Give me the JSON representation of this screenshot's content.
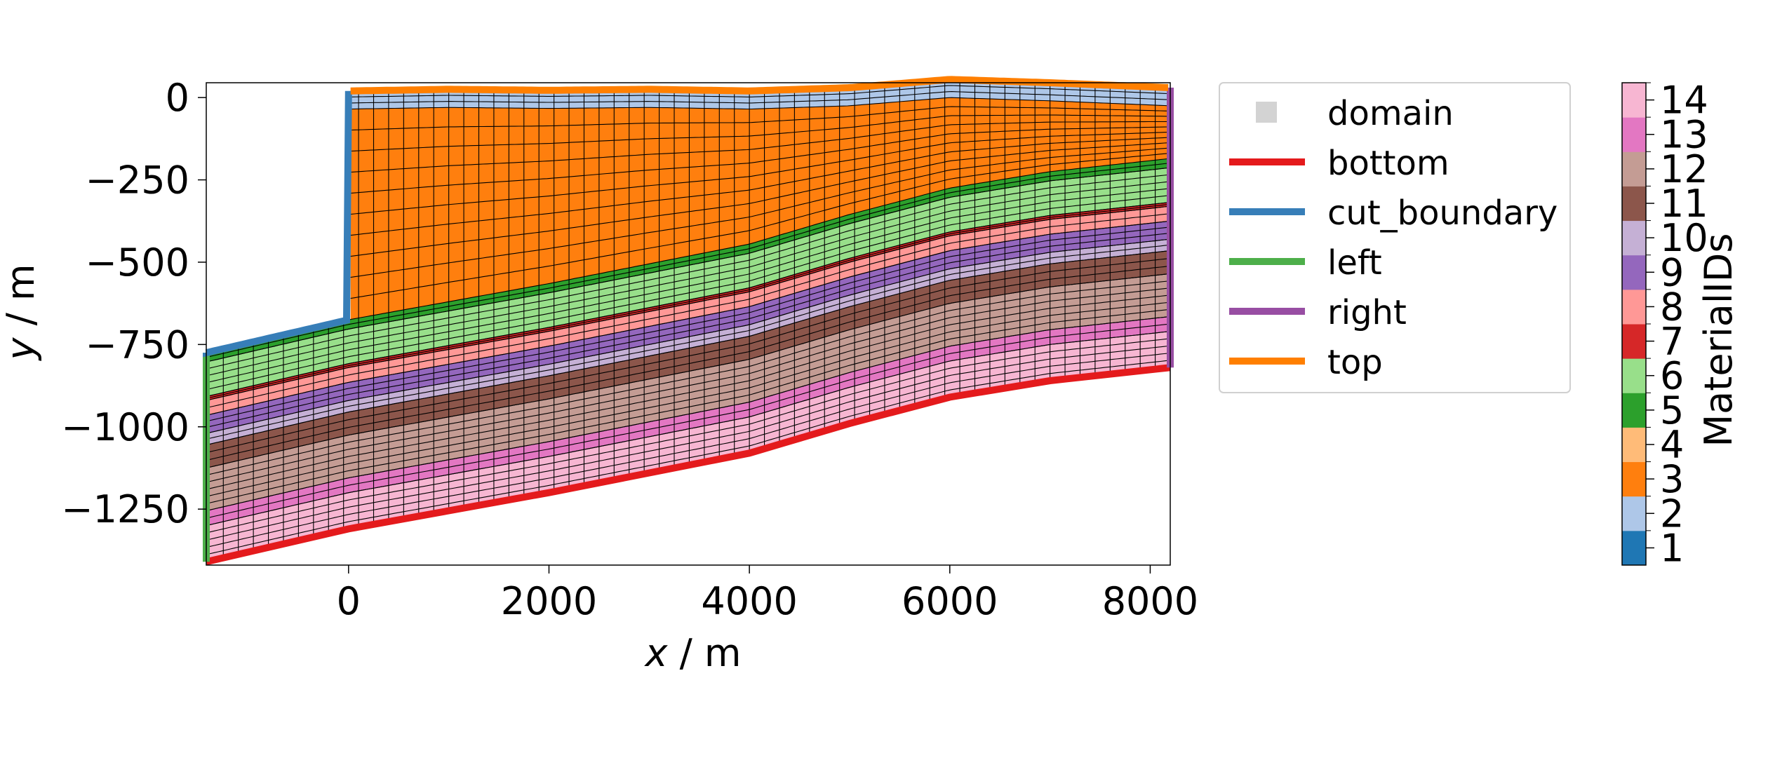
{
  "chart_data": {
    "type": "mesh-section",
    "xlabel_var": "x",
    "xlabel_unit": " / m",
    "ylabel_var": "y",
    "ylabel_unit": " / m",
    "xlim": [
      -1420,
      8200
    ],
    "ylim": [
      -1420,
      45
    ],
    "xticks": [
      0,
      2000,
      4000,
      6000,
      8000
    ],
    "yticks": [
      0,
      -250,
      -500,
      -750,
      -1000,
      -1250
    ],
    "xtick_labels": [
      "0",
      "2000",
      "4000",
      "6000",
      "8000"
    ],
    "ytick_labels": [
      "0",
      "−250",
      "−500",
      "−750",
      "−1000",
      "−1250"
    ],
    "top_surface": {
      "x": [
        0,
        1000,
        2000,
        3000,
        4000,
        5000,
        6000,
        7000,
        8200
      ],
      "y": [
        20,
        25,
        22,
        25,
        20,
        30,
        55,
        45,
        30
      ]
    },
    "legend": {
      "placement": "right-outside",
      "entries": [
        {
          "label": "domain",
          "kind": "patch",
          "color": "#d3d3d3"
        },
        {
          "label": "bottom",
          "kind": "line",
          "color": "#e41a1c"
        },
        {
          "label": "cut_boundary",
          "kind": "line",
          "color": "#377eb8"
        },
        {
          "label": "left",
          "kind": "line",
          "color": "#4daf4a"
        },
        {
          "label": "right",
          "kind": "line",
          "color": "#984ea3"
        },
        {
          "label": "top",
          "kind": "line",
          "color": "#ff7f00"
        }
      ]
    },
    "colorbar": {
      "label": "MaterialIDs",
      "ticks": [
        "1",
        "2",
        "3",
        "4",
        "5",
        "6",
        "7",
        "8",
        "9",
        "10",
        "11",
        "12",
        "13",
        "14"
      ],
      "colors": [
        "#1f77b4",
        "#aec7e8",
        "#ff7f0e",
        "#ffbb78",
        "#2ca02c",
        "#98df8a",
        "#d62728",
        "#ff9896",
        "#9467bd",
        "#c5b0d5",
        "#8c564b",
        "#c49c94",
        "#e377c2",
        "#f7b6d2"
      ]
    }
  }
}
